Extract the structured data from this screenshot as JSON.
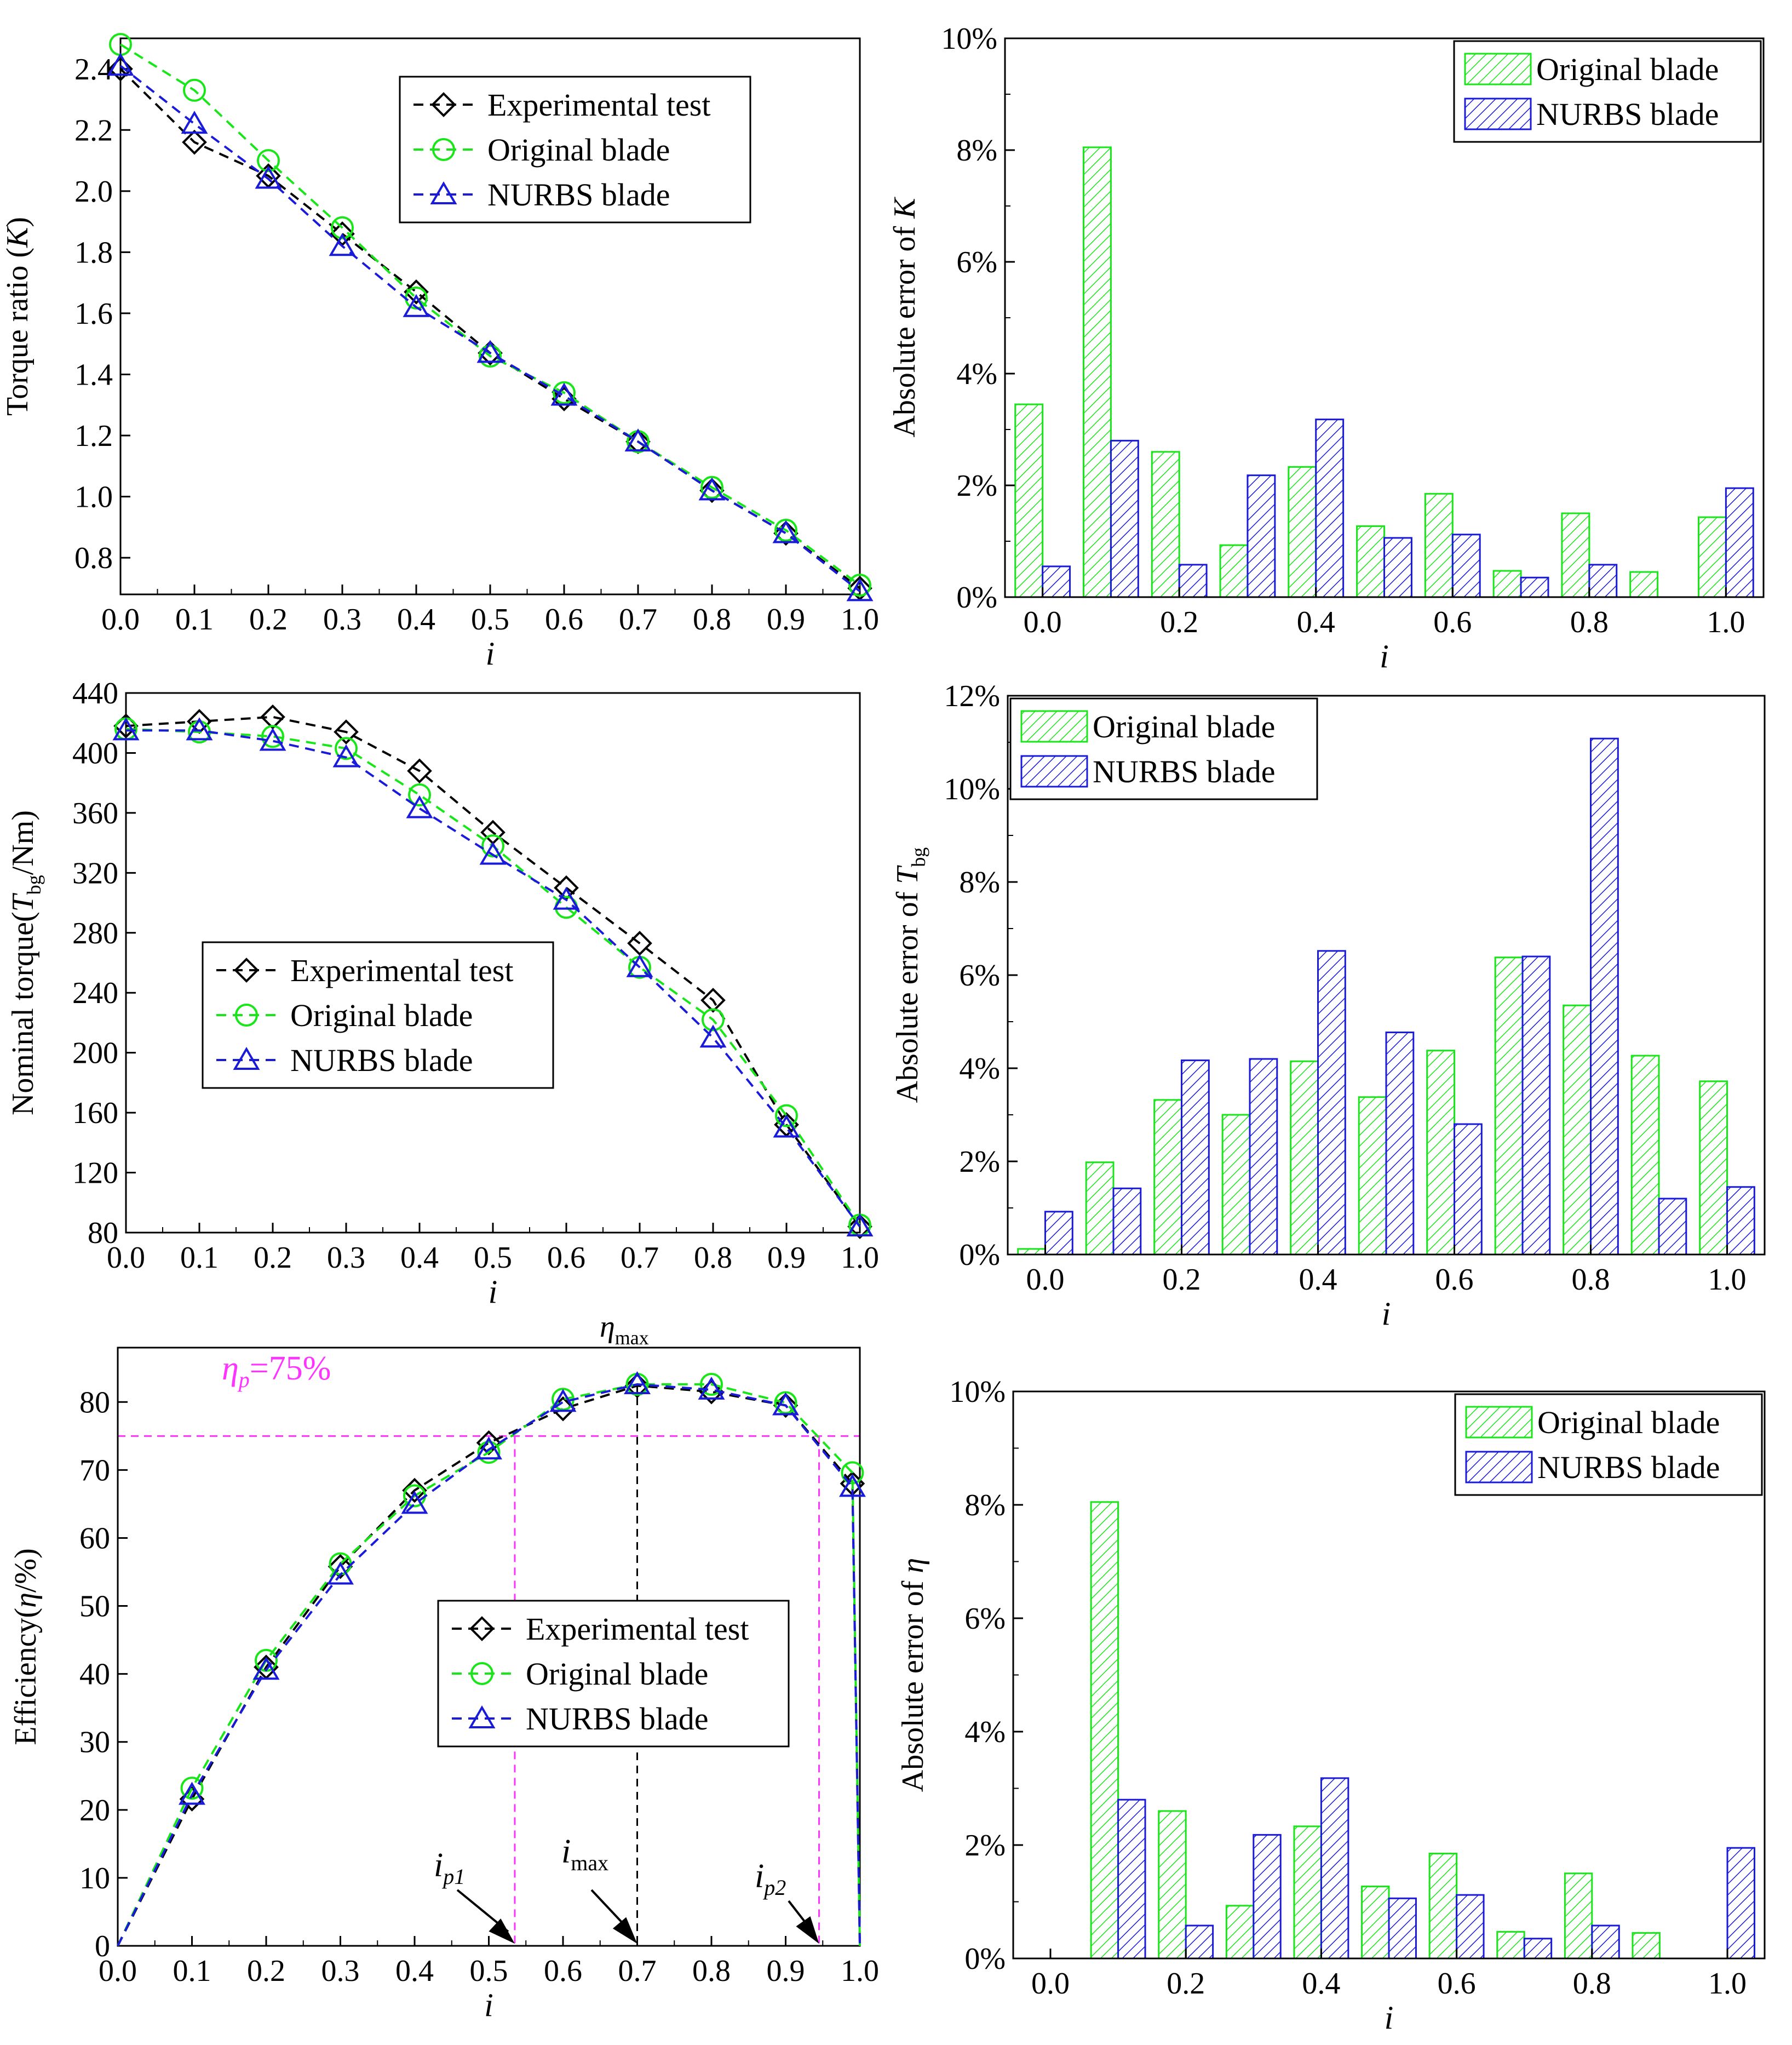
{
  "colors": {
    "experimental": "#000000",
    "original": "#19e619",
    "nurbs": "#1a1ad9",
    "reference": "#ff33ff"
  },
  "chart_data": [
    {
      "id": "torque-ratio",
      "type": "line",
      "title": "",
      "xlabel": "i",
      "ylabel_parts": [
        "Torque ratio (",
        "K",
        ")"
      ],
      "xlim": [
        0,
        1
      ],
      "ylim": [
        0.68,
        2.5
      ],
      "xticks": [
        "0.0",
        "0.1",
        "0.2",
        "0.3",
        "0.4",
        "0.5",
        "0.6",
        "0.7",
        "0.8",
        "0.9",
        "1.0"
      ],
      "yticks": [
        "0.8",
        "1.0",
        "1.2",
        "1.4",
        "1.6",
        "1.8",
        "2.0",
        "2.2",
        "2.4"
      ],
      "x": [
        0.0,
        0.1,
        0.2,
        0.3,
        0.4,
        0.5,
        0.6,
        0.7,
        0.8,
        0.9,
        1.0
      ],
      "series": [
        {
          "key": "experimental",
          "name": "Experimental test",
          "marker": "diamond",
          "values": [
            2.4,
            2.16,
            2.05,
            1.86,
            1.67,
            1.47,
            1.32,
            1.18,
            1.02,
            0.88,
            0.7
          ]
        },
        {
          "key": "original",
          "name": "Original blade",
          "marker": "circle",
          "values": [
            2.48,
            2.33,
            2.1,
            1.88,
            1.65,
            1.46,
            1.34,
            1.18,
            1.03,
            0.89,
            0.71
          ]
        },
        {
          "key": "nurbs",
          "name": "NURBS blade",
          "marker": "triangle",
          "values": [
            2.41,
            2.22,
            2.04,
            1.82,
            1.62,
            1.47,
            1.33,
            1.18,
            1.02,
            0.88,
            0.69
          ]
        }
      ],
      "legend": "top-center"
    },
    {
      "id": "abs-error-k",
      "type": "bar",
      "title": "",
      "xlabel": "i",
      "ylabel_parts": [
        "Absolute error of ",
        "K",
        ""
      ],
      "ylim": [
        0,
        10
      ],
      "yticks": [
        "0%",
        "2%",
        "4%",
        "6%",
        "8%",
        "10%"
      ],
      "xticks": [
        "0.0",
        "0.2",
        "0.4",
        "0.6",
        "0.8",
        "1.0"
      ],
      "categories": [
        "0.0",
        "0.1",
        "0.2",
        "0.3",
        "0.4",
        "0.5",
        "0.6",
        "0.7",
        "0.8",
        "0.9",
        "1.0"
      ],
      "series": [
        {
          "key": "original",
          "name": "Original blade",
          "values": [
            3.45,
            8.05,
            2.6,
            0.93,
            2.33,
            1.27,
            1.85,
            0.47,
            1.5,
            0.45,
            1.43
          ]
        },
        {
          "key": "nurbs",
          "name": "NURBS blade",
          "values": [
            0.55,
            2.8,
            0.58,
            2.18,
            3.18,
            1.06,
            1.12,
            0.35,
            0.58,
            0,
            1.95
          ]
        }
      ],
      "legend": "top-right"
    },
    {
      "id": "nominal-torque",
      "type": "line",
      "title": "",
      "xlabel": "i",
      "ylabel_parts": [
        "Nominal torque(",
        "T",
        "bg",
        "/Nm)"
      ],
      "xlim": [
        0,
        1
      ],
      "ylim": [
        80,
        440
      ],
      "xticks": [
        "0.0",
        "0.1",
        "0.2",
        "0.3",
        "0.4",
        "0.5",
        "0.6",
        "0.7",
        "0.8",
        "0.9",
        "1.0"
      ],
      "yticks": [
        "80",
        "120",
        "160",
        "200",
        "240",
        "280",
        "320",
        "360",
        "400",
        "440"
      ],
      "x": [
        0.0,
        0.1,
        0.2,
        0.3,
        0.4,
        0.5,
        0.6,
        0.7,
        0.8,
        0.9,
        1.0
      ],
      "series": [
        {
          "key": "experimental",
          "name": "Experimental test",
          "marker": "diamond",
          "values": [
            418,
            421,
            424,
            414,
            388,
            347,
            310,
            273,
            235,
            152,
            84
          ]
        },
        {
          "key": "original",
          "name": "Original blade",
          "marker": "circle",
          "values": [
            416,
            414,
            411,
            403,
            372,
            338,
            297,
            257,
            222,
            158,
            85
          ]
        },
        {
          "key": "nurbs",
          "name": "NURBS blade",
          "marker": "triangle",
          "values": [
            415,
            415,
            408,
            397,
            363,
            332,
            302,
            257,
            210,
            150,
            84
          ]
        }
      ],
      "legend": "bottom-left"
    },
    {
      "id": "abs-error-tbg",
      "type": "bar",
      "title": "",
      "xlabel": "i",
      "ylabel_parts": [
        "Absolute error of ",
        "T",
        "bg",
        ""
      ],
      "ylim": [
        0,
        12
      ],
      "yticks": [
        "0%",
        "2%",
        "4%",
        "6%",
        "8%",
        "10%",
        "12%"
      ],
      "xticks": [
        "0.0",
        "0.2",
        "0.4",
        "0.6",
        "0.8",
        "1.0"
      ],
      "categories": [
        "0.0",
        "0.1",
        "0.2",
        "0.3",
        "0.4",
        "0.5",
        "0.6",
        "0.7",
        "0.8",
        "0.9",
        "1.0"
      ],
      "series": [
        {
          "key": "original",
          "name": "Original blade",
          "values": [
            0.12,
            1.98,
            3.32,
            3.0,
            4.15,
            3.38,
            4.38,
            6.38,
            5.35,
            4.27,
            3.72
          ]
        },
        {
          "key": "nurbs",
          "name": "NURBS blade",
          "values": [
            0.92,
            1.42,
            4.17,
            4.2,
            6.52,
            4.77,
            2.8,
            6.4,
            11.08,
            1.2,
            1.45
          ]
        }
      ],
      "legend": "top-left"
    },
    {
      "id": "efficiency",
      "type": "line",
      "title": "",
      "xlabel": "i",
      "ylabel_parts": [
        "Efficiency(",
        "η",
        "/%)"
      ],
      "xlim": [
        0,
        1
      ],
      "ylim": [
        0,
        88
      ],
      "xticks": [
        "0.0",
        "0.1",
        "0.2",
        "0.3",
        "0.4",
        "0.5",
        "0.6",
        "0.7",
        "0.8",
        "0.9",
        "1.0"
      ],
      "yticks": [
        "0",
        "10",
        "20",
        "30",
        "40",
        "50",
        "60",
        "70",
        "80"
      ],
      "x": [
        0.0,
        0.1,
        0.2,
        0.3,
        0.4,
        0.5,
        0.6,
        0.7,
        0.8,
        0.9,
        0.99,
        1.0
      ],
      "series": [
        {
          "key": "experimental",
          "name": "Experimental test",
          "marker": "diamond",
          "values": [
            0,
            21.6,
            41,
            55.8,
            67,
            74,
            79,
            82.4,
            81.5,
            79.5,
            68,
            0
          ]
        },
        {
          "key": "original",
          "name": "Original blade",
          "marker": "circle",
          "values": [
            0,
            23.2,
            42,
            56.2,
            66.2,
            72.6,
            80.4,
            82.6,
            82.6,
            79.9,
            69.6,
            0
          ]
        },
        {
          "key": "nurbs",
          "name": "NURBS blade",
          "marker": "triangle",
          "values": [
            0,
            22.2,
            40.6,
            54.6,
            65,
            73,
            80,
            82.6,
            81.8,
            79.5,
            67.5,
            0
          ]
        }
      ],
      "legend": "bottom-center",
      "annotations": {
        "eta_p_label": "η",
        "eta_p_sub": "p",
        "eta_p_value": "=75%",
        "eta_p_level": 75,
        "eta_max": "η",
        "eta_max_sub": "max",
        "ip1": "i",
        "ip1_sub": "p1",
        "imax": "i",
        "imax_sub": "max",
        "ip2": "i",
        "ip2_sub": "p2",
        "ip1_x": 0.535,
        "imax_x": 0.7,
        "ip2_x": 0.945
      }
    },
    {
      "id": "abs-error-eta",
      "type": "bar",
      "title": "",
      "xlabel": "i",
      "ylabel_parts": [
        "Absolute error of ",
        "η",
        ""
      ],
      "ylim": [
        0,
        10
      ],
      "yticks": [
        "0%",
        "2%",
        "4%",
        "6%",
        "8%",
        "10%"
      ],
      "xticks": [
        "0.0",
        "0.2",
        "0.4",
        "0.6",
        "0.8",
        "1.0"
      ],
      "categories": [
        "0.0",
        "0.1",
        "0.2",
        "0.3",
        "0.4",
        "0.5",
        "0.6",
        "0.7",
        "0.8",
        "0.9",
        "1.0"
      ],
      "series": [
        {
          "key": "original",
          "name": "Original blade",
          "values": [
            0,
            8.05,
            2.6,
            0.93,
            2.33,
            1.27,
            1.85,
            0.47,
            1.5,
            0.45,
            0
          ]
        },
        {
          "key": "nurbs",
          "name": "NURBS blade",
          "values": [
            0,
            2.8,
            0.58,
            2.18,
            3.18,
            1.06,
            1.12,
            0.35,
            0.58,
            0,
            1.95
          ]
        }
      ],
      "legend": "top-right"
    }
  ]
}
